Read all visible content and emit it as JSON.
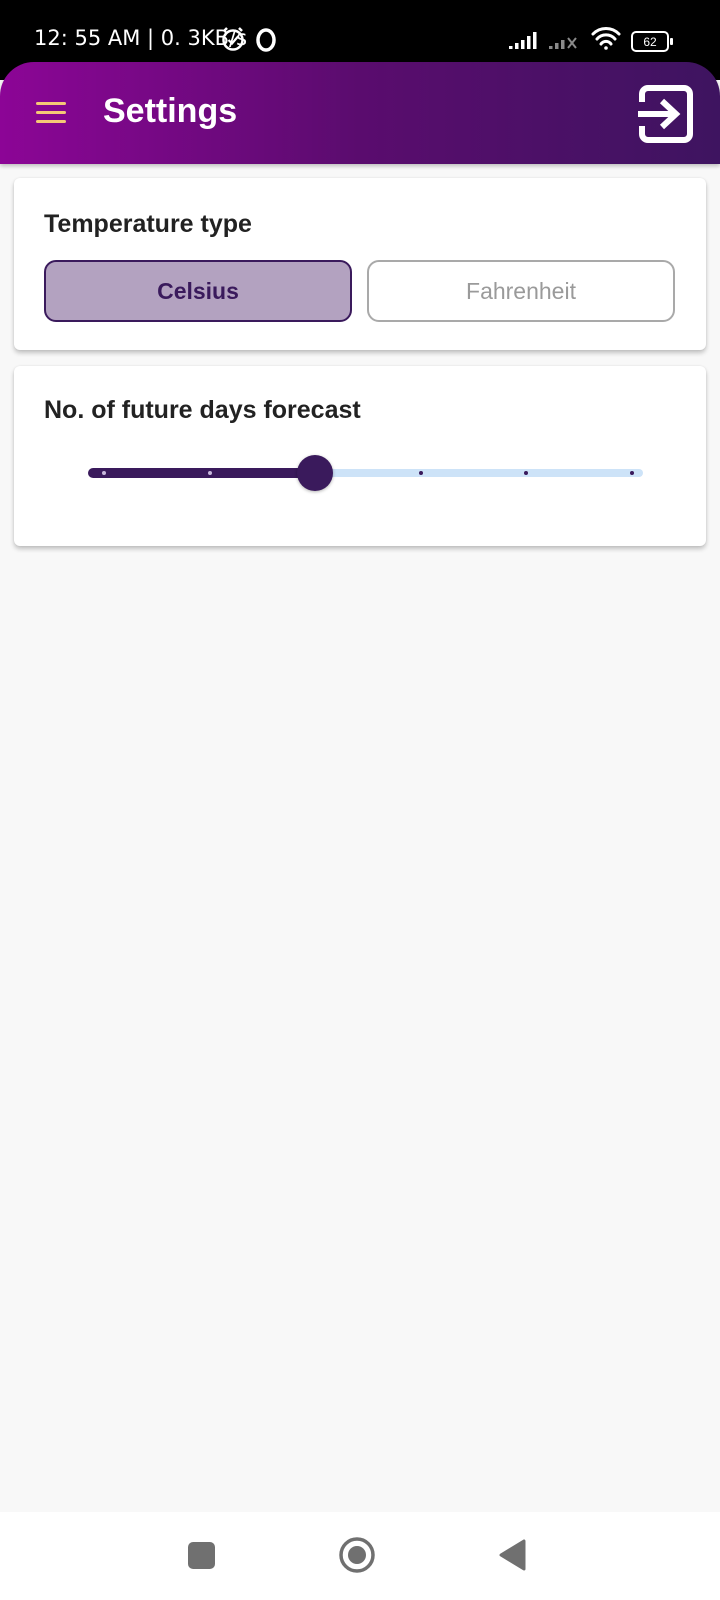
{
  "status_bar": {
    "time": "12: 55 AM | 0. 3KB/s",
    "battery": "62",
    "icons": [
      "alarm-icon",
      "opera-icon",
      "signal-icon",
      "signal-weak-icon",
      "wifi-icon",
      "battery-icon"
    ]
  },
  "app_bar": {
    "title": "Settings",
    "menu_icon": "hamburger-menu-icon",
    "action_icon": "exit-to-app-icon",
    "gradient_start": "#8c0596",
    "gradient_end": "#3e1460",
    "menu_color": "#f5c876"
  },
  "temperature_card": {
    "title": "Temperature type",
    "options": [
      "Celsius",
      "Fahrenheit"
    ],
    "selected": "Celsius"
  },
  "forecast_card": {
    "title": "No. of future days forecast",
    "slider": {
      "min": 1,
      "max": 6,
      "value": 3,
      "active_color": "#3a1a5c",
      "inactive_color": "#cde3f8"
    }
  },
  "nav_bar": {
    "icons": [
      "recents-square-icon",
      "home-circle-icon",
      "back-triangle-icon"
    ]
  }
}
